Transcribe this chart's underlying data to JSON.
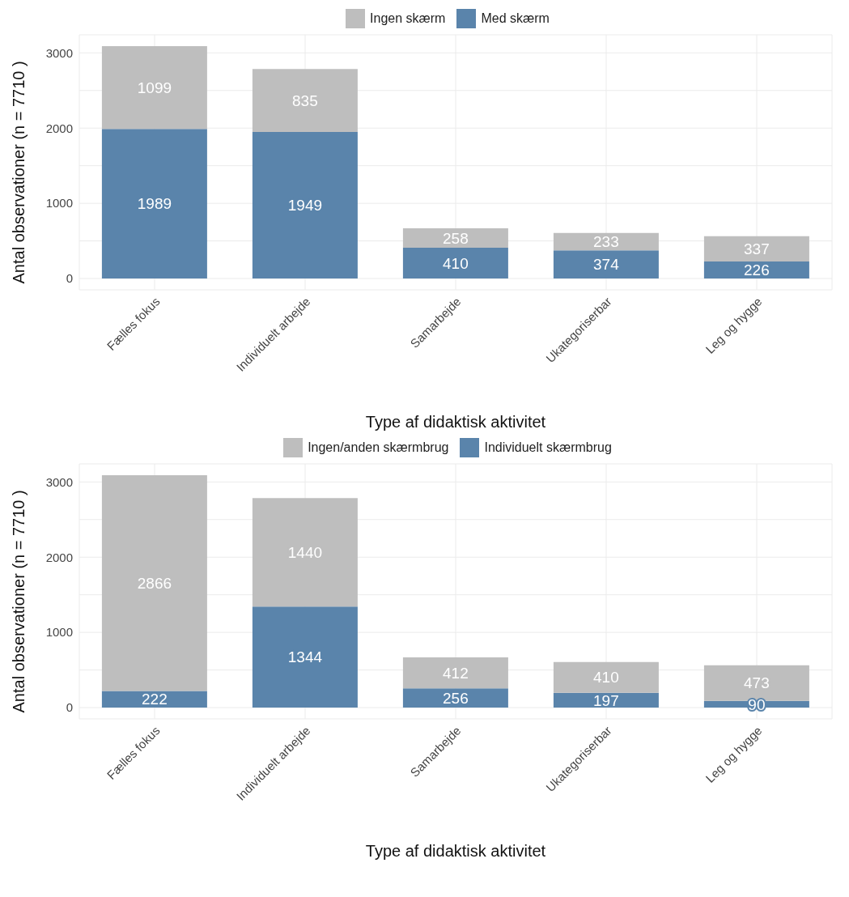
{
  "chart_data": [
    {
      "type": "bar",
      "stacked": true,
      "xlabel": "Type af didaktisk aktivitet",
      "ylabel": "Antal observationer (n = 7710 )",
      "categories": [
        "Fælles fokus",
        "Individuelt arbejde",
        "Samarbejde",
        "Ukategoriserbar",
        "Leg og hygge"
      ],
      "series": [
        {
          "name": "Med skærm",
          "color": "#5a84ab",
          "values": [
            1989,
            1949,
            410,
            374,
            226
          ]
        },
        {
          "name": "Ingen skærm",
          "color": "#bebebe",
          "values": [
            1099,
            835,
            258,
            233,
            337
          ]
        }
      ],
      "ylim": [
        -150,
        3240
      ],
      "yticks": [
        0,
        {
          "value": 500,
          "label": null
        },
        1000,
        {
          "value": 1500,
          "label": null
        },
        2000,
        {
          "value": 2500,
          "label": null
        },
        3000
      ],
      "grid": true,
      "legend": "top",
      "data_labels": true
    },
    {
      "type": "bar",
      "stacked": true,
      "xlabel": "Type af didaktisk aktivitet",
      "ylabel": "Antal observationer (n = 7710 )",
      "categories": [
        "Fælles fokus",
        "Individuelt arbejde",
        "Samarbejde",
        "Ukategoriserbar",
        "Leg og hygge"
      ],
      "series": [
        {
          "name": "Individuelt skærmbrug",
          "color": "#5a84ab",
          "values": [
            222,
            1344,
            256,
            197,
            90
          ]
        },
        {
          "name": "Ingen/anden skærmbrug",
          "color": "#bebebe",
          "values": [
            2866,
            1440,
            412,
            410,
            473
          ]
        }
      ],
      "ylim": [
        -150,
        3240
      ],
      "yticks": [
        0,
        {
          "value": 500,
          "label": null
        },
        1000,
        {
          "value": 1500,
          "label": null
        },
        2000,
        {
          "value": 2500,
          "label": null
        },
        3000
      ],
      "grid": true,
      "legend": "top",
      "data_labels": true
    }
  ]
}
